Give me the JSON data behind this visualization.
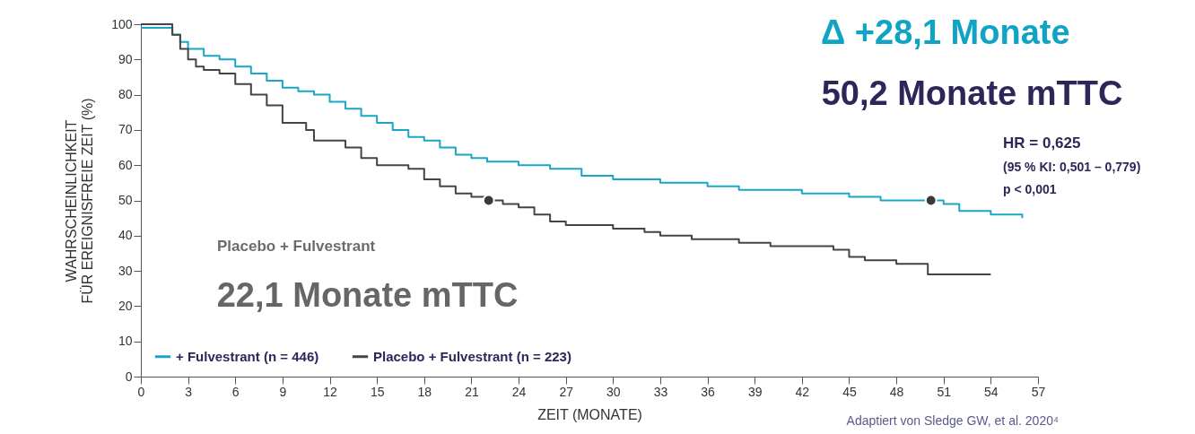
{
  "chart_data": {
    "type": "step",
    "xlabel": "ZEIT (MONATE)",
    "ylabel": "WAHRSCHEINLICHKEIT\nFÜR EREIGNISFREIE ZEIT (%)",
    "xlim": [
      0,
      57
    ],
    "xticks": [
      0,
      3,
      6,
      9,
      12,
      15,
      18,
      21,
      24,
      27,
      30,
      33,
      36,
      39,
      42,
      45,
      48,
      51,
      54,
      57
    ],
    "ylim": [
      0,
      100
    ],
    "yticks": [
      0,
      10,
      20,
      30,
      40,
      50,
      60,
      70,
      80,
      90,
      100
    ],
    "grid": false,
    "legend": "bottom left",
    "marker": "none",
    "line_style": "solid",
    "series": [
      {
        "name": "+ Fulvestrant (n = 446)",
        "color": "#1aa6c8",
        "x": [
          0,
          1.5,
          2,
          2.5,
          3,
          4,
          5,
          6,
          7,
          8,
          9,
          10,
          11,
          12,
          13,
          14,
          15,
          16,
          17,
          18,
          19,
          20,
          21,
          22,
          24,
          26,
          28,
          30,
          33,
          36,
          38,
          42,
          45,
          47,
          50.2,
          51,
          52,
          54,
          56
        ],
        "values": [
          99,
          99,
          97,
          95,
          93,
          91,
          90,
          88,
          86,
          84,
          82,
          81,
          80,
          78,
          76,
          74,
          72,
          70,
          68,
          67,
          65,
          63,
          62,
          61,
          60,
          59,
          57,
          56,
          55,
          54,
          53,
          52,
          51,
          50,
          50,
          49,
          47,
          46,
          45
        ]
      },
      {
        "name": "Placebo + Fulvestrant (n = 223)",
        "color": "#444444",
        "x": [
          0,
          1.5,
          2,
          2.5,
          3,
          3.5,
          4,
          5,
          6,
          7,
          8,
          9,
          10,
          10.5,
          11,
          13,
          14,
          15,
          17,
          18,
          19,
          20,
          21,
          22.1,
          23,
          24,
          25,
          26,
          27,
          30,
          32,
          33,
          35,
          38,
          40,
          44,
          45,
          46,
          48,
          50,
          54
        ],
        "values": [
          100,
          100,
          97,
          93,
          90,
          88,
          87,
          86,
          83,
          80,
          77,
          72,
          72,
          70,
          67,
          65,
          62,
          60,
          59,
          56,
          54,
          52,
          51,
          50,
          49,
          48,
          46,
          44,
          43,
          42,
          41,
          40,
          39,
          38,
          37,
          36,
          34,
          33,
          32,
          29,
          29
        ]
      }
    ],
    "annotations": [
      "Placebo + Fulvestrant",
      {
        "text": "22,1 Monate mTTC",
        "x": 22.1,
        "y": 50
      },
      "Δ +28,1 Monate",
      {
        "text": "50,2 Monate mTTC",
        "x": 50.2,
        "y": 50
      },
      "HR = 0,625",
      "(95 % KI: 0,501 – 0,779)",
      "p < 0,001",
      "Adaptiert von Sledge GW, et al. 2020⁴"
    ]
  }
}
